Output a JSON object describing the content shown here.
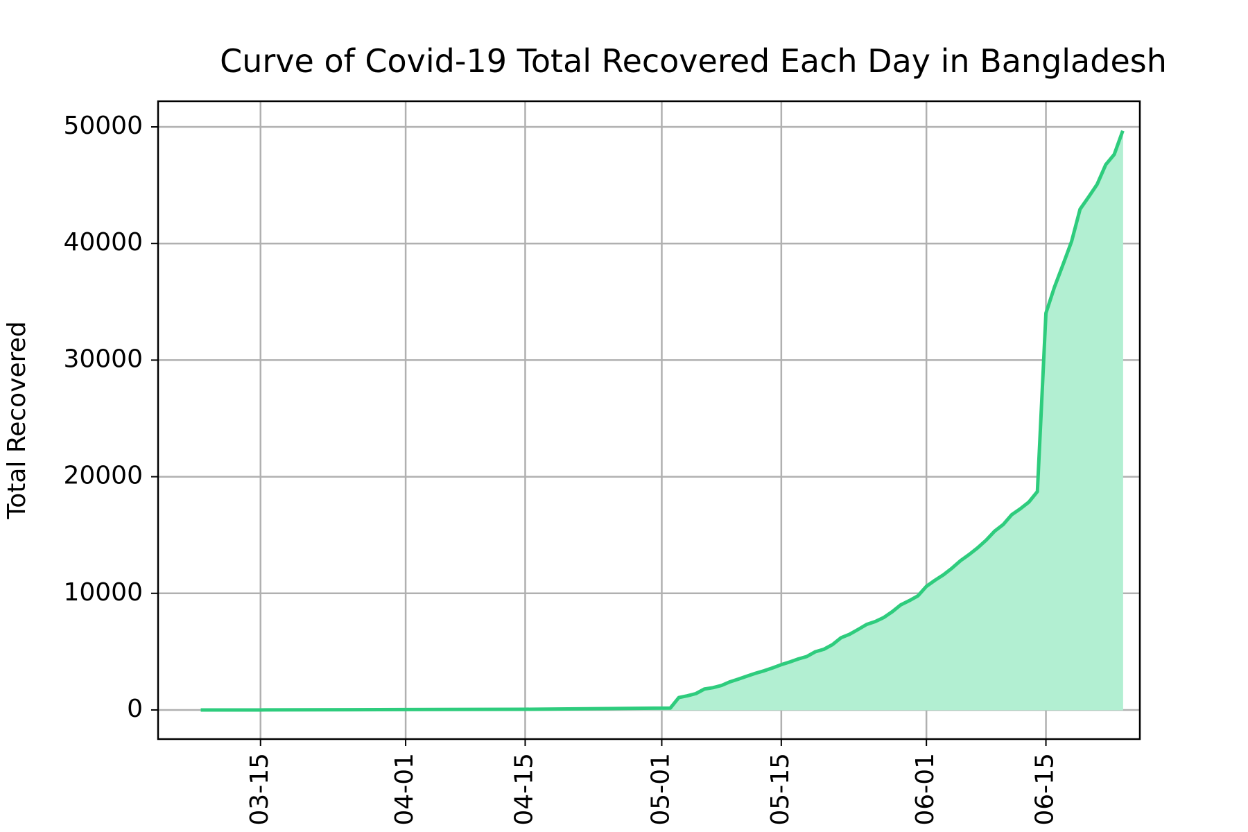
{
  "chart_data": {
    "type": "area",
    "title": "Curve of Covid-19 Total Recovered Each Day in Bangladesh",
    "xlabel": "",
    "ylabel": "Total Recovered",
    "x_axis": "date",
    "xlim": [
      "2020-03-03",
      "2020-06-26"
    ],
    "ylim": [
      -2500,
      52200
    ],
    "grid": true,
    "line_color": "#2ecc7d",
    "fill_color": "#b2efd2",
    "x_ticks": [
      {
        "date": "2020-03-15",
        "label": "03-15"
      },
      {
        "date": "2020-04-01",
        "label": "04-01"
      },
      {
        "date": "2020-04-15",
        "label": "04-15"
      },
      {
        "date": "2020-05-01",
        "label": "05-01"
      },
      {
        "date": "2020-05-15",
        "label": "05-15"
      },
      {
        "date": "2020-06-01",
        "label": "06-01"
      },
      {
        "date": "2020-06-15",
        "label": "06-15"
      }
    ],
    "y_ticks": [
      0,
      10000,
      20000,
      30000,
      40000,
      50000
    ],
    "series": [
      {
        "name": "",
        "points": [
          [
            "2020-03-08",
            0
          ],
          [
            "2020-03-15",
            0
          ],
          [
            "2020-04-01",
            33
          ],
          [
            "2020-04-15",
            58
          ],
          [
            "2020-04-30",
            150
          ],
          [
            "2020-05-02",
            160
          ],
          [
            "2020-05-03",
            1063
          ],
          [
            "2020-05-04",
            1210
          ],
          [
            "2020-05-05",
            1403
          ],
          [
            "2020-05-06",
            1796
          ],
          [
            "2020-05-07",
            1910
          ],
          [
            "2020-05-08",
            2101
          ],
          [
            "2020-05-09",
            2414
          ],
          [
            "2020-05-10",
            2650
          ],
          [
            "2020-05-11",
            2902
          ],
          [
            "2020-05-12",
            3147
          ],
          [
            "2020-05-13",
            3361
          ],
          [
            "2020-05-14",
            3611
          ],
          [
            "2020-05-15",
            3882
          ],
          [
            "2020-05-16",
            4117
          ],
          [
            "2020-05-17",
            4373
          ],
          [
            "2020-05-18",
            4585
          ],
          [
            "2020-05-19",
            4993
          ],
          [
            "2020-05-20",
            5207
          ],
          [
            "2020-05-21",
            5602
          ],
          [
            "2020-05-22",
            6190
          ],
          [
            "2020-05-23",
            6486
          ],
          [
            "2020-05-24",
            6901
          ],
          [
            "2020-05-25",
            7334
          ],
          [
            "2020-05-26",
            7579
          ],
          [
            "2020-05-27",
            7925
          ],
          [
            "2020-05-28",
            8425
          ],
          [
            "2020-05-29",
            9015
          ],
          [
            "2020-05-30",
            9375
          ],
          [
            "2020-05-31",
            9781
          ],
          [
            "2020-06-01",
            10597
          ],
          [
            "2020-06-02",
            11120
          ],
          [
            "2020-06-03",
            11590
          ],
          [
            "2020-06-04",
            12161
          ],
          [
            "2020-06-05",
            12804
          ],
          [
            "2020-06-06",
            13325
          ],
          [
            "2020-06-07",
            13903
          ],
          [
            "2020-06-08",
            14560
          ],
          [
            "2020-06-09",
            15337
          ],
          [
            "2020-06-10",
            15900
          ],
          [
            "2020-06-11",
            16748
          ],
          [
            "2020-06-12",
            17249
          ],
          [
            "2020-06-13",
            17827
          ],
          [
            "2020-06-14",
            18730
          ],
          [
            "2020-06-15",
            34027
          ],
          [
            "2020-06-16",
            36264
          ],
          [
            "2020-06-17",
            38189
          ],
          [
            "2020-06-18",
            40164
          ],
          [
            "2020-06-19",
            42945
          ],
          [
            "2020-06-20",
            43993
          ],
          [
            "2020-06-21",
            45077
          ],
          [
            "2020-06-22",
            46755
          ],
          [
            "2020-06-23",
            47635
          ],
          [
            "2020-06-24",
            49666
          ]
        ]
      }
    ]
  }
}
